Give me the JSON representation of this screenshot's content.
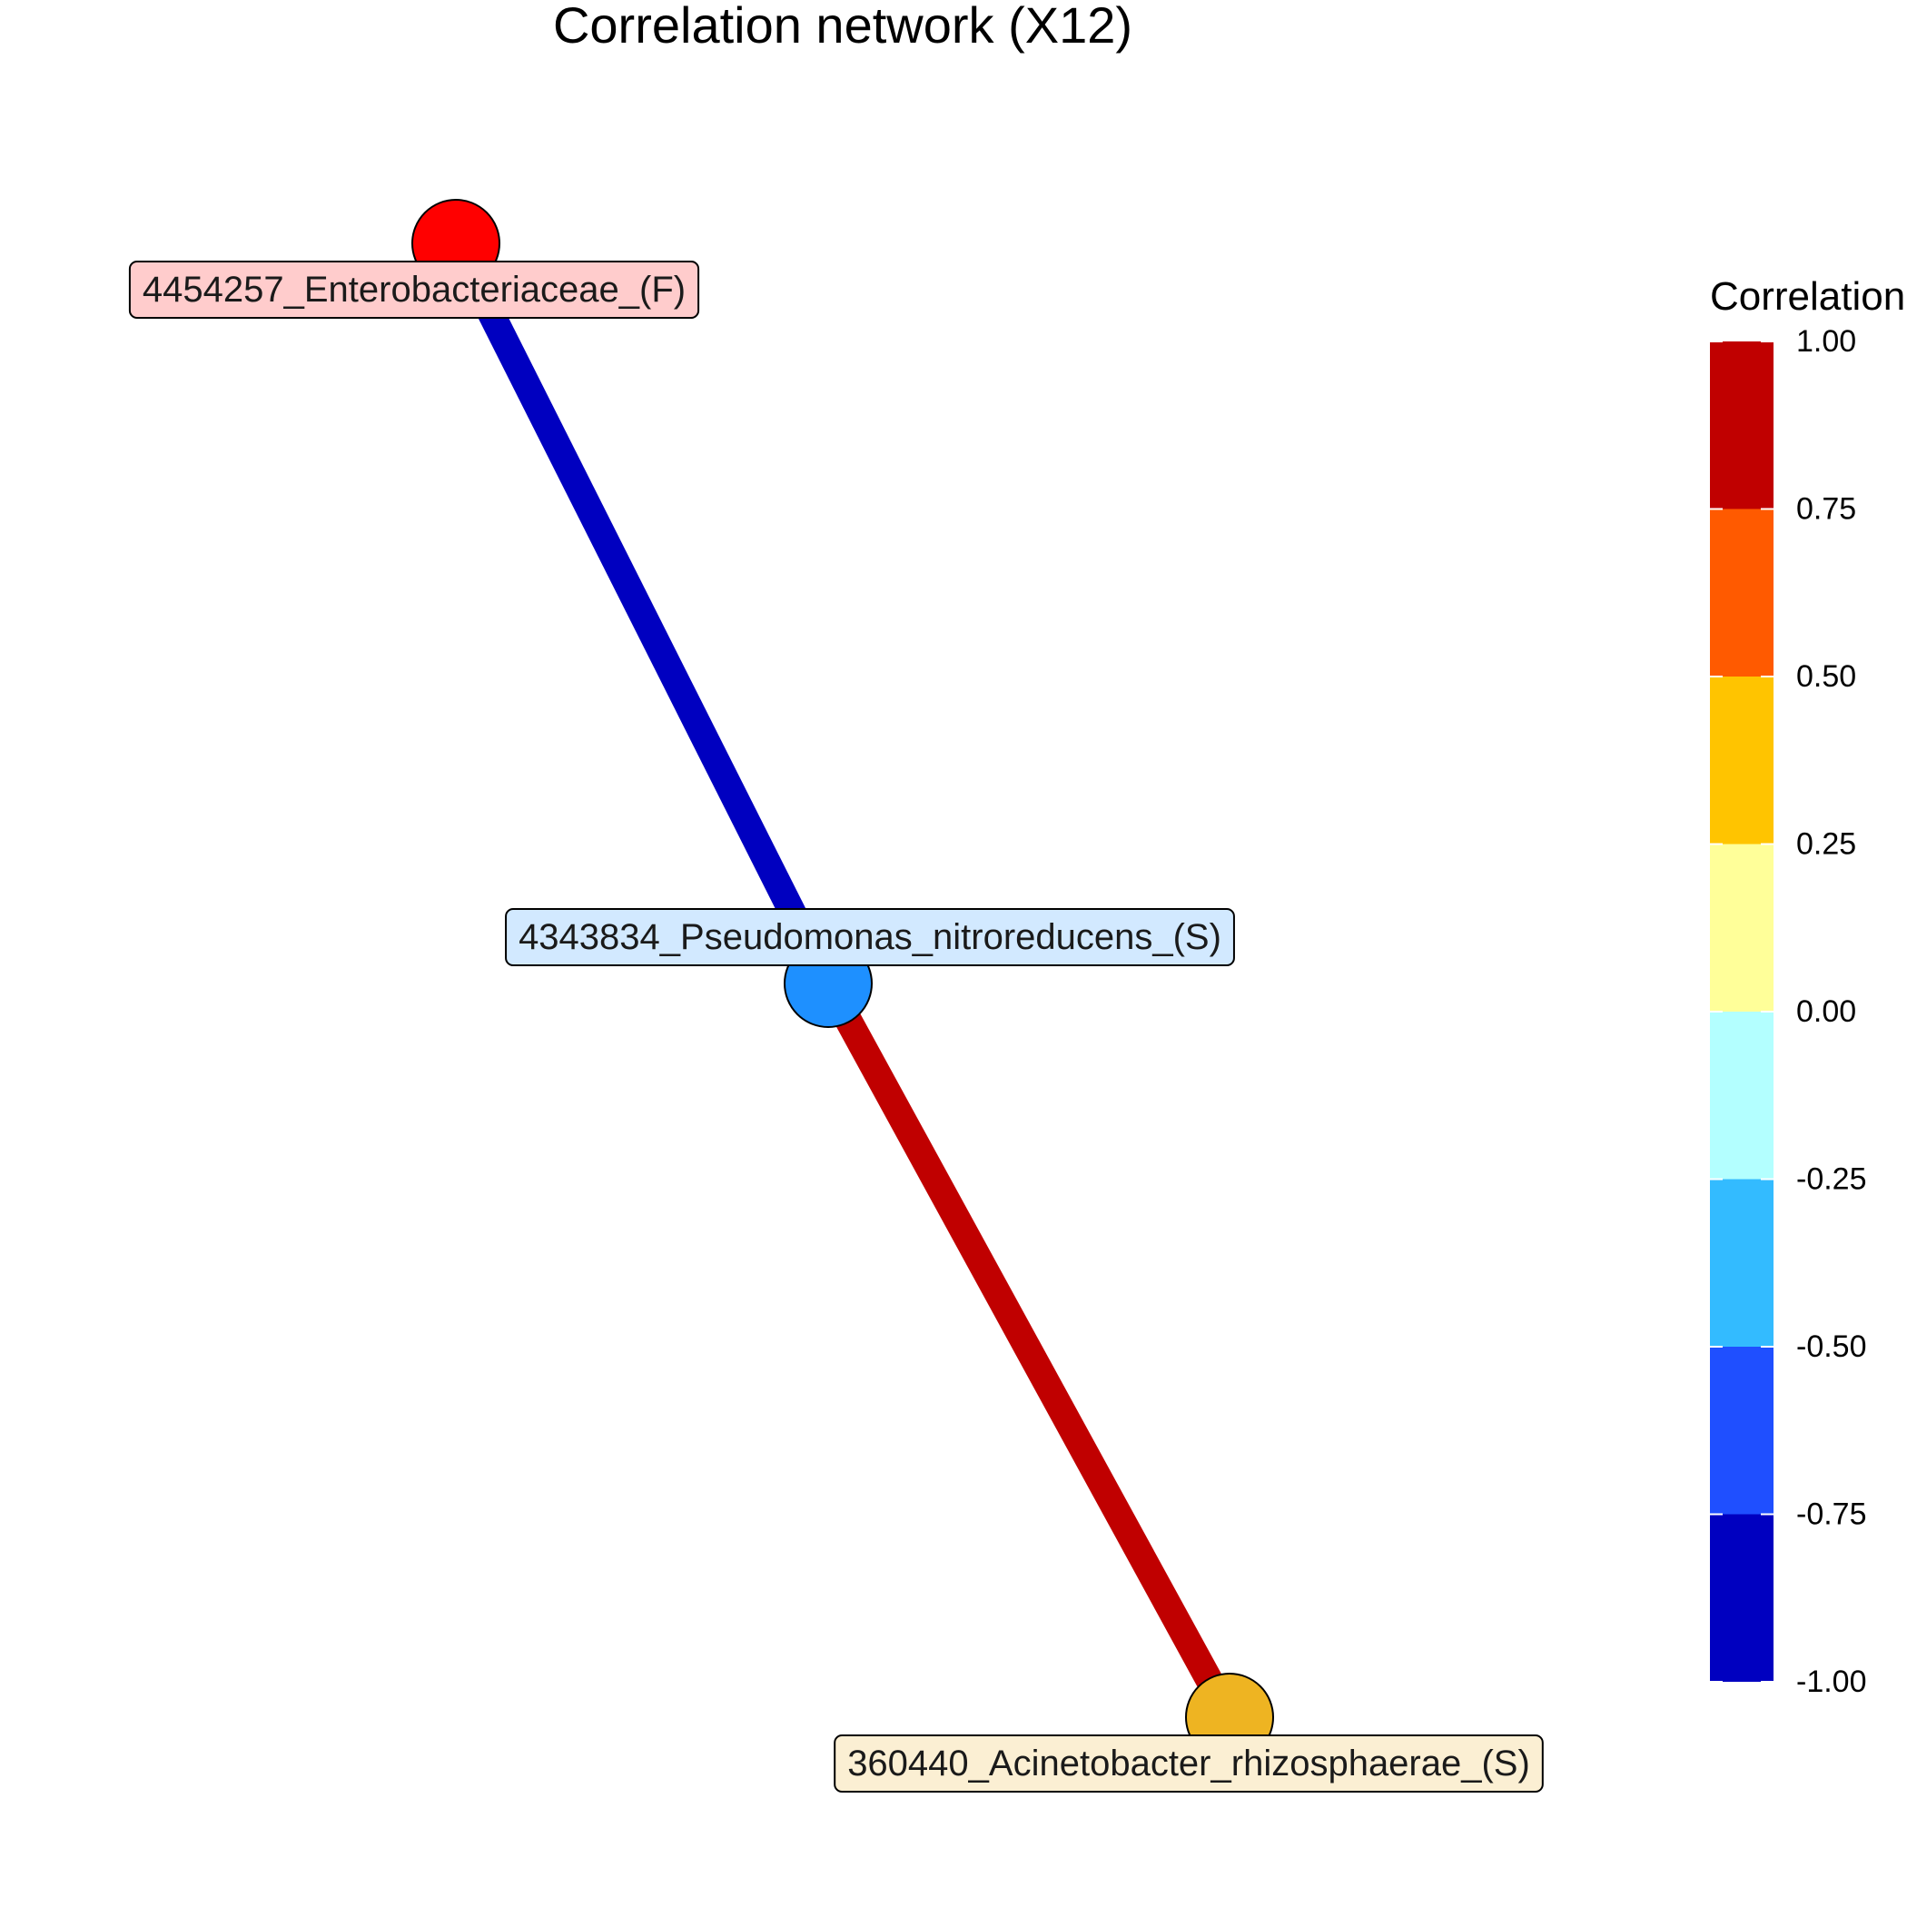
{
  "title": "Correlation network (X12)",
  "nodes": [
    {
      "id": "n1",
      "label": "4454257_Enterobacteriaceae_(F)",
      "color": "#FF0000",
      "label_bg": "#FFCCCC"
    },
    {
      "id": "n2",
      "label": "4343834_Pseudomonas_nitroreducens_(S)",
      "color": "#1E90FF",
      "label_bg": "#D2E9FF"
    },
    {
      "id": "n3",
      "label": "360440_Acinetobacter_rhizosphaerae_(S)",
      "color": "#EEB422",
      "label_bg": "#FBEFD3"
    }
  ],
  "edges": [
    {
      "from": "n1",
      "to": "n2",
      "correlation": -0.9,
      "color": "#0000C0"
    },
    {
      "from": "n2",
      "to": "n3",
      "correlation": 0.9,
      "color": "#C00000"
    }
  ],
  "legend": {
    "title": "Correlation",
    "ticks": [
      "1.00",
      "0.75",
      "0.50",
      "0.25",
      "0.00",
      "-0.25",
      "-0.50",
      "-0.75",
      "-1.00"
    ],
    "bins": [
      {
        "range": [
          0.75,
          1.0
        ],
        "color": "#C00000"
      },
      {
        "range": [
          0.5,
          0.75
        ],
        "color": "#FF5A00"
      },
      {
        "range": [
          0.25,
          0.5
        ],
        "color": "#FFC400"
      },
      {
        "range": [
          0.0,
          0.25
        ],
        "color": "#FFFF99"
      },
      {
        "range": [
          -0.25,
          0.0
        ],
        "color": "#B3FFFF"
      },
      {
        "range": [
          -0.5,
          -0.25
        ],
        "color": "#33BBFF"
      },
      {
        "range": [
          -0.75,
          -0.5
        ],
        "color": "#1F4FFF"
      },
      {
        "range": [
          -1.0,
          -0.75
        ],
        "color": "#0000C0"
      }
    ]
  }
}
